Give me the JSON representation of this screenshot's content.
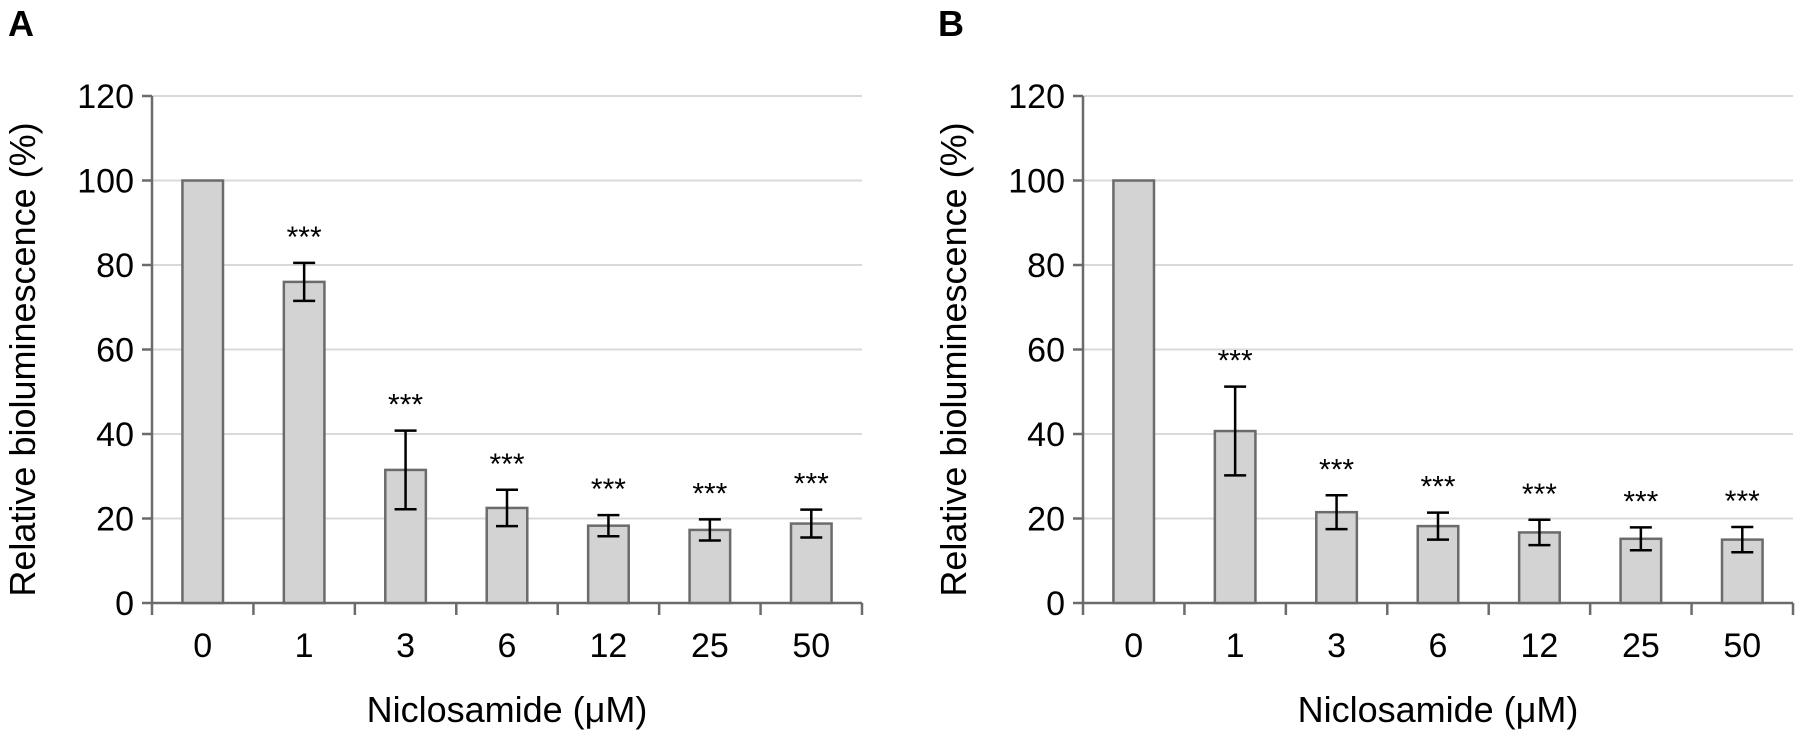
{
  "chart_data": [
    {
      "panel": "A",
      "type": "bar",
      "categories": [
        "0",
        "1",
        "3",
        "6",
        "12",
        "25",
        "50"
      ],
      "values": [
        100,
        76,
        31.5,
        22.5,
        18.3,
        17.3,
        18.8
      ],
      "errors": [
        0,
        4.5,
        9.3,
        4.3,
        2.5,
        2.5,
        3.3
      ],
      "significance": [
        "",
        "***",
        "***",
        "***",
        "***",
        "***",
        "***"
      ],
      "xlabel": "Niclosamide (μM)",
      "ylabel": "Relative bioluminescence (%)",
      "ylim": [
        0,
        120
      ],
      "yticks": [
        "0",
        "20",
        "40",
        "60",
        "80",
        "100",
        "120"
      ],
      "grid": true
    },
    {
      "panel": "B",
      "type": "bar",
      "categories": [
        "0",
        "1",
        "3",
        "6",
        "12",
        "25",
        "50"
      ],
      "values": [
        100,
        40.7,
        21.5,
        18.2,
        16.7,
        15.2,
        15
      ],
      "errors": [
        0,
        10.5,
        4,
        3.2,
        3,
        2.7,
        3
      ],
      "significance": [
        "",
        "***",
        "***",
        "***",
        "***",
        "***",
        "***"
      ],
      "xlabel": "Niclosamide (μM)",
      "ylabel": "Relative bioluminescence (%)",
      "ylim": [
        0,
        120
      ],
      "yticks": [
        "0",
        "20",
        "40",
        "60",
        "80",
        "100",
        "120"
      ],
      "grid": true
    }
  ]
}
